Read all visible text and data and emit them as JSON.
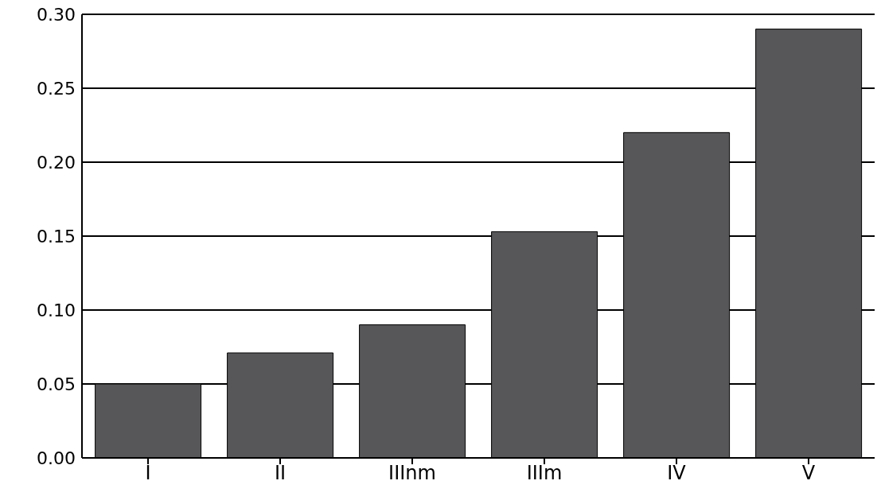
{
  "chart_data": {
    "type": "bar",
    "categories": [
      "I",
      "II",
      "IIInm",
      "IIIm",
      "IV",
      "V"
    ],
    "values": [
      0.05,
      0.071,
      0.09,
      0.153,
      0.22,
      0.29
    ],
    "color": "#575759",
    "ylim": [
      0,
      0.3
    ],
    "yticks": [
      {
        "value": 0,
        "label": "0.00"
      },
      {
        "value": 0.05,
        "label": "0.05"
      },
      {
        "value": 0.1,
        "label": "0.10"
      },
      {
        "value": 0.15,
        "label": "0.15"
      },
      {
        "value": 0.2,
        "label": "0.20"
      },
      {
        "value": 0.25,
        "label": "0.25"
      },
      {
        "value": 0.3,
        "label": "0.30"
      }
    ],
    "grid": "y",
    "legend": false
  }
}
